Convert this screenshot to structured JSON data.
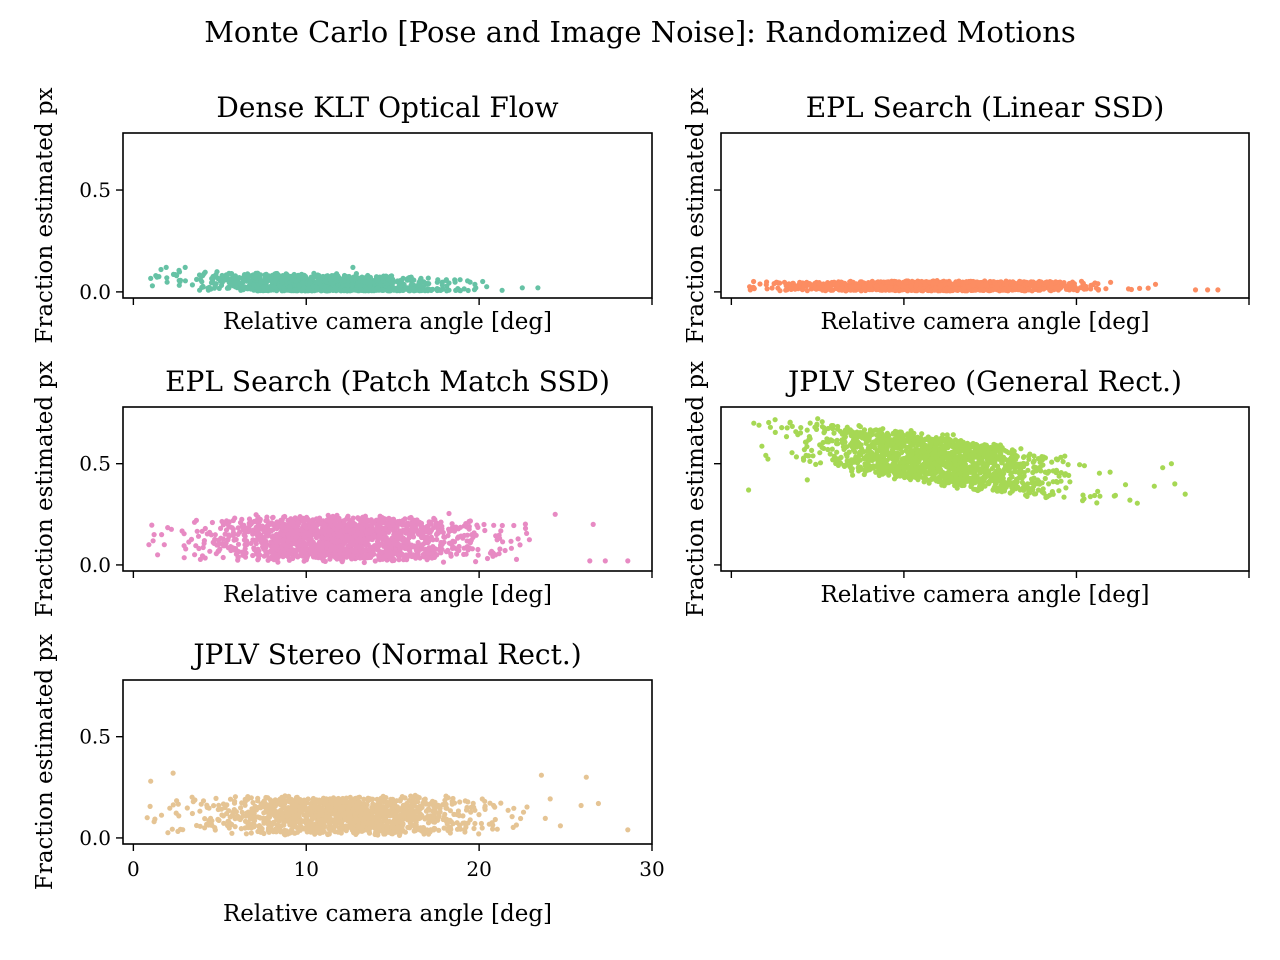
{
  "suptitle": "Monte Carlo [Pose and Image Noise]: Randomized Motions",
  "chart_data": [
    {
      "type": "scatter",
      "title": "Dense KLT Optical Flow",
      "xlabel": "Relative camera angle [deg]",
      "ylabel": "Fraction estimated px",
      "xlim": [
        -0.6,
        30
      ],
      "ylim": [
        -0.03,
        0.78
      ],
      "xticks": [
        0,
        10,
        20,
        30
      ],
      "yticks": [
        0.0,
        0.5
      ],
      "show_xticklabels": false,
      "show_yticklabels": true,
      "grid": false,
      "color": "#66c2a5",
      "cloud": {
        "n": 1100,
        "seed": 11,
        "x_mean": 11,
        "x_sd": 5,
        "x_min": 0.9,
        "x_max": 23.5,
        "y_base_at_x0": 0.065,
        "y_slope_per_deg": -0.0025,
        "y_spread": 0.045,
        "y_floor": 0.005,
        "y_ceiling": 0.13
      },
      "points": [
        [
          1.1,
          0.03
        ],
        [
          1.3,
          0.08
        ],
        [
          1.6,
          0.11
        ],
        [
          1.9,
          0.12
        ],
        [
          2.5,
          0.08
        ],
        [
          2.7,
          0.05
        ],
        [
          3.0,
          0.12
        ],
        [
          23.4,
          0.02
        ],
        [
          22.5,
          0.02
        ],
        [
          18.9,
          0.06
        ],
        [
          12.7,
          0.12
        ],
        [
          12.9,
          0.09
        ]
      ]
    },
    {
      "type": "scatter",
      "title": "EPL Search (Linear SSD)",
      "xlabel": "Relative camera angle [deg]",
      "ylabel": "Fraction estimated px",
      "xlim": [
        -0.6,
        30
      ],
      "ylim": [
        -0.03,
        0.78
      ],
      "xticks": [
        0,
        10,
        20,
        30
      ],
      "yticks": [
        0.0,
        0.5
      ],
      "show_xticklabels": false,
      "show_yticklabels": false,
      "grid": false,
      "color": "#fc8d62",
      "cloud": {
        "n": 1500,
        "seed": 22,
        "x_mean": 12,
        "x_sd": 5.5,
        "x_min": 1.0,
        "x_max": 26,
        "y_base_at_x0": 0.028,
        "y_slope_per_deg": 0.0,
        "y_spread": 0.022,
        "y_floor": 0.005,
        "y_ceiling": 0.06
      },
      "points": [
        [
          1.1,
          0.01
        ],
        [
          1.3,
          0.02
        ],
        [
          27.6,
          0.01
        ],
        [
          28.2,
          0.01
        ],
        [
          26.9,
          0.01
        ]
      ]
    },
    {
      "type": "scatter",
      "title": "EPL Search (Patch Match SSD)",
      "xlabel": "Relative camera angle [deg]",
      "ylabel": "Fraction estimated px",
      "xlim": [
        -0.6,
        30
      ],
      "ylim": [
        -0.03,
        0.78
      ],
      "xticks": [
        0,
        10,
        20,
        30
      ],
      "yticks": [
        0.0,
        0.5
      ],
      "show_xticklabels": false,
      "show_yticklabels": true,
      "grid": false,
      "color": "#e78ac3",
      "cloud": {
        "n": 1700,
        "seed": 33,
        "x_mean": 12,
        "x_sd": 5.3,
        "x_min": 0.9,
        "x_max": 26.5,
        "y_base_at_x0": 0.13,
        "y_slope_per_deg": 0.0,
        "y_spread": 0.1,
        "y_floor": 0.005,
        "y_ceiling": 0.27
      },
      "points": [
        [
          0.9,
          0.1
        ],
        [
          1.2,
          0.15
        ],
        [
          1.4,
          0.05
        ],
        [
          28.6,
          0.02
        ],
        [
          27.3,
          0.02
        ],
        [
          26.6,
          0.2
        ],
        [
          26.4,
          0.02
        ],
        [
          24.4,
          0.25
        ]
      ]
    },
    {
      "type": "scatter",
      "title": "JPLV Stereo (General Rect.)",
      "xlabel": "Relative camera angle [deg]",
      "ylabel": "Fraction estimated px",
      "xlim": [
        -0.6,
        30
      ],
      "ylim": [
        -0.03,
        0.78
      ],
      "xticks": [
        0,
        10,
        20,
        30
      ],
      "yticks": [
        0.0,
        0.5
      ],
      "show_xticklabels": false,
      "show_yticklabels": false,
      "grid": false,
      "color": "#a6d854",
      "cloud": {
        "n": 1500,
        "seed": 44,
        "x_mean": 12,
        "x_sd": 5,
        "x_min": 1.0,
        "x_max": 25.5,
        "y_base_at_x0": 0.655,
        "y_slope_per_deg": -0.0115,
        "y_spread": 0.11,
        "y_floor": 0.3,
        "y_ceiling": 0.75
      },
      "points": [
        [
          1.0,
          0.37
        ],
        [
          1.3,
          0.7
        ],
        [
          1.6,
          0.69
        ],
        [
          4.4,
          0.42
        ],
        [
          25.0,
          0.48
        ],
        [
          26.3,
          0.35
        ],
        [
          25.7,
          0.4
        ],
        [
          23.1,
          0.32
        ],
        [
          25.5,
          0.5
        ]
      ]
    },
    {
      "type": "scatter",
      "title": "JPLV Stereo (Normal Rect.)",
      "xlabel": "Relative camera angle [deg]",
      "ylabel": "Fraction estimated px",
      "xlim": [
        -0.6,
        30
      ],
      "ylim": [
        -0.03,
        0.78
      ],
      "xticks": [
        0,
        10,
        20,
        30
      ],
      "xticklabels": [
        "0",
        "10",
        "20",
        "30"
      ],
      "yticks": [
        0.0,
        0.5
      ],
      "show_xticklabels": true,
      "show_yticklabels": true,
      "grid": false,
      "color": "#e5c494",
      "cloud": {
        "n": 1300,
        "seed": 55,
        "x_mean": 12,
        "x_sd": 5.5,
        "x_min": 0.9,
        "x_max": 26,
        "y_base_at_x0": 0.11,
        "y_slope_per_deg": 0.0,
        "y_spread": 0.085,
        "y_floor": 0.005,
        "y_ceiling": 0.33
      },
      "points": [
        [
          1.0,
          0.28
        ],
        [
          0.8,
          0.1
        ],
        [
          1.2,
          0.08
        ],
        [
          2.3,
          0.32
        ],
        [
          28.6,
          0.04
        ],
        [
          26.2,
          0.3
        ],
        [
          26.9,
          0.17
        ],
        [
          24.7,
          0.06
        ],
        [
          25.9,
          0.16
        ],
        [
          23.6,
          0.31
        ]
      ]
    }
  ]
}
